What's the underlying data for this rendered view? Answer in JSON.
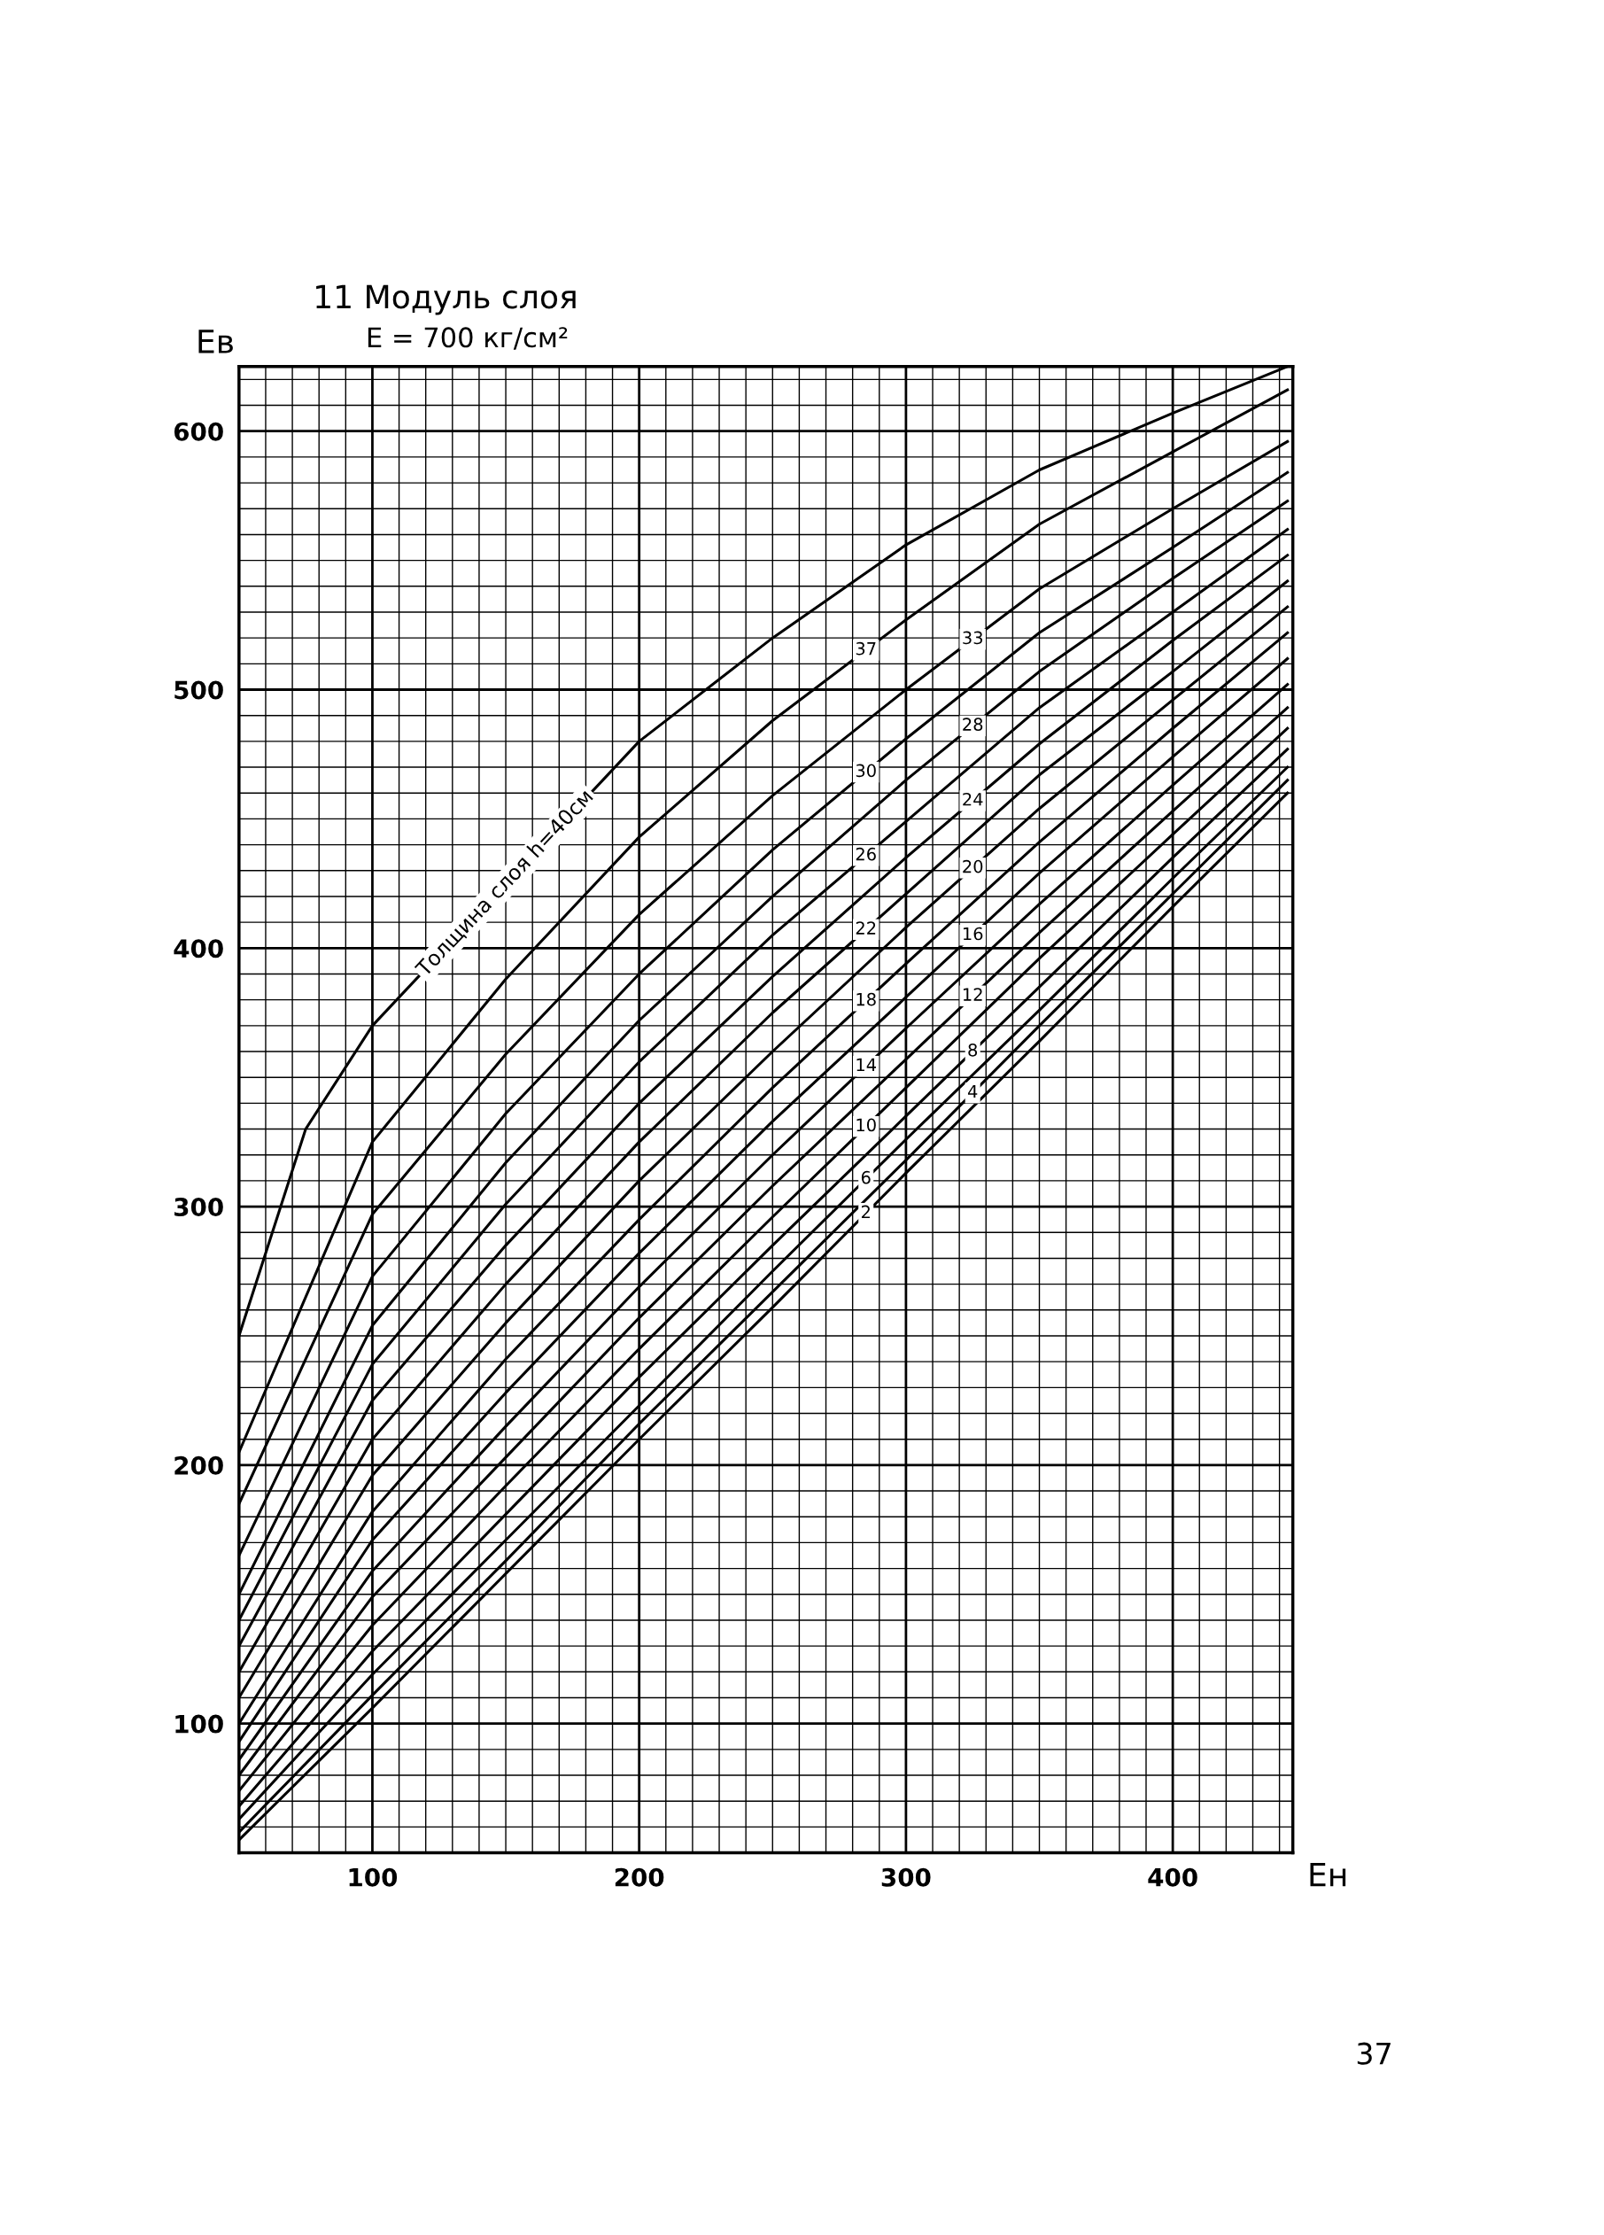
{
  "chart_data": {
    "type": "line",
    "title": "11 Модуль слоя",
    "subtitle": "E = 700 кг/см²",
    "xlabel": "Eн",
    "ylabel": "Eв",
    "annotations": [
      "37"
    ],
    "x": [
      50,
      100,
      150,
      200,
      250,
      300,
      350,
      400,
      443
    ],
    "xlim": [
      50,
      445
    ],
    "ylim": [
      50,
      625
    ],
    "xticks": [
      {
        "value": 60,
        "label": null
      },
      {
        "value": 70,
        "label": null
      },
      {
        "value": 80,
        "label": null
      },
      {
        "value": 90,
        "label": null
      },
      100,
      {
        "value": 110,
        "label": null
      },
      {
        "value": 120,
        "label": null
      },
      {
        "value": 130,
        "label": null
      },
      {
        "value": 140,
        "label": null
      },
      {
        "value": 150,
        "label": null
      },
      {
        "value": 160,
        "label": null
      },
      {
        "value": 170,
        "label": null
      },
      {
        "value": 180,
        "label": null
      },
      {
        "value": 190,
        "label": null
      },
      200,
      {
        "value": 210,
        "label": null
      },
      {
        "value": 220,
        "label": null
      },
      {
        "value": 230,
        "label": null
      },
      {
        "value": 240,
        "label": null
      },
      {
        "value": 250,
        "label": null
      },
      {
        "value": 260,
        "label": null
      },
      {
        "value": 270,
        "label": null
      },
      {
        "value": 280,
        "label": null
      },
      {
        "value": 290,
        "label": null
      },
      300,
      {
        "value": 310,
        "label": null
      },
      {
        "value": 320,
        "label": null
      },
      {
        "value": 330,
        "label": null
      },
      {
        "value": 340,
        "label": null
      },
      {
        "value": 350,
        "label": null
      },
      {
        "value": 360,
        "label": null
      },
      {
        "value": 370,
        "label": null
      },
      {
        "value": 380,
        "label": null
      },
      {
        "value": 390,
        "label": null
      },
      400,
      {
        "value": 410,
        "label": null
      },
      {
        "value": 420,
        "label": null
      },
      {
        "value": 430,
        "label": null
      },
      {
        "value": 440,
        "label": null
      }
    ],
    "yticks": [
      {
        "value": 60,
        "label": null
      },
      {
        "value": 70,
        "label": null
      },
      {
        "value": 80,
        "label": null
      },
      {
        "value": 90,
        "label": null
      },
      100,
      {
        "value": 110,
        "label": null
      },
      {
        "value": 120,
        "label": null
      },
      {
        "value": 130,
        "label": null
      },
      {
        "value": 140,
        "label": null
      },
      {
        "value": 150,
        "label": null
      },
      {
        "value": 160,
        "label": null
      },
      {
        "value": 170,
        "label": null
      },
      {
        "value": 180,
        "label": null
      },
      {
        "value": 190,
        "label": null
      },
      200,
      {
        "value": 210,
        "label": null
      },
      {
        "value": 220,
        "label": null
      },
      {
        "value": 230,
        "label": null
      },
      {
        "value": 240,
        "label": null
      },
      {
        "value": 250,
        "label": null
      },
      {
        "value": 260,
        "label": null
      },
      {
        "value": 270,
        "label": null
      },
      {
        "value": 280,
        "label": null
      },
      {
        "value": 290,
        "label": null
      },
      300,
      {
        "value": 310,
        "label": null
      },
      {
        "value": 320,
        "label": null
      },
      {
        "value": 330,
        "label": null
      },
      {
        "value": 340,
        "label": null
      },
      {
        "value": 350,
        "label": null
      },
      {
        "value": 360,
        "label": null
      },
      {
        "value": 370,
        "label": null
      },
      {
        "value": 380,
        "label": null
      },
      {
        "value": 390,
        "label": null
      },
      400,
      {
        "value": 410,
        "label": null
      },
      {
        "value": 420,
        "label": null
      },
      {
        "value": 430,
        "label": null
      },
      {
        "value": 440,
        "label": null
      },
      {
        "value": 450,
        "label": null
      },
      {
        "value": 460,
        "label": null
      },
      {
        "value": 470,
        "label": null
      },
      {
        "value": 480,
        "label": null
      },
      {
        "value": 490,
        "label": null
      },
      500,
      {
        "value": 510,
        "label": null
      },
      {
        "value": 520,
        "label": null
      },
      {
        "value": 530,
        "label": null
      },
      {
        "value": 540,
        "label": null
      },
      {
        "value": 550,
        "label": null
      },
      {
        "value": 560,
        "label": null
      },
      {
        "value": 570,
        "label": null
      },
      {
        "value": 580,
        "label": null
      },
      {
        "value": 590,
        "label": null
      },
      600,
      {
        "value": 610,
        "label": null
      },
      {
        "value": 620,
        "label": null
      }
    ],
    "grid": true,
    "legend": false,
    "marker": "none",
    "line_style": "solid",
    "series": [
      {
        "name": "Толщина слоя h=40см",
        "color": "#000000",
        "x": [
          50,
          75,
          100,
          200,
          250,
          300,
          350,
          400,
          443
        ],
        "values": [
          250,
          330,
          370,
          480,
          520,
          556,
          585,
          607,
          625
        ]
      },
      {
        "name": "37",
        "color": "#000000",
        "values": [
          205,
          325,
          388,
          443,
          488,
          527,
          564,
          592,
          616
        ]
      },
      {
        "name": "33",
        "color": "#000000",
        "values": [
          185,
          297,
          359,
          413,
          459,
          500,
          539,
          570,
          596
        ]
      },
      {
        "name": "30",
        "color": "#000000",
        "values": [
          165,
          273,
          336,
          390,
          438,
          481,
          522,
          555,
          584
        ]
      },
      {
        "name": "28",
        "color": "#000000",
        "values": [
          150,
          254,
          317,
          372,
          420,
          465,
          507,
          543,
          573
        ]
      },
      {
        "name": "26",
        "color": "#000000",
        "values": [
          140,
          239,
          301,
          356,
          405,
          449,
          493,
          530,
          562
        ]
      },
      {
        "name": "24",
        "color": "#000000",
        "values": [
          130,
          225,
          285,
          340,
          389,
          435,
          479,
          519,
          552
        ]
      },
      {
        "name": "22",
        "color": "#000000",
        "values": [
          120,
          210,
          270,
          325,
          375,
          421,
          467,
          507,
          542
        ]
      },
      {
        "name": "20",
        "color": "#000000",
        "values": [
          110,
          196,
          255,
          310,
          360,
          408,
          454,
          496,
          532
        ]
      },
      {
        "name": "18",
        "color": "#000000",
        "values": [
          100,
          182,
          241,
          295,
          346,
          394,
          441,
          485,
          522
        ]
      },
      {
        "name": "16",
        "color": "#000000",
        "values": [
          93,
          171,
          228,
          282,
          333,
          381,
          429,
          474,
          512
        ]
      },
      {
        "name": "14",
        "color": "#000000",
        "values": [
          86,
          159,
          215,
          269,
          320,
          369,
          417,
          463,
          502
        ]
      },
      {
        "name": "12",
        "color": "#000000",
        "values": [
          80,
          149,
          203,
          257,
          308,
          357,
          406,
          453,
          493
        ]
      },
      {
        "name": "10",
        "color": "#000000",
        "values": [
          74,
          138,
          192,
          245,
          296,
          346,
          396,
          444,
          485
        ]
      },
      {
        "name": "8",
        "color": "#000000",
        "values": [
          68,
          128,
          181,
          234,
          285,
          335,
          385,
          435,
          477
        ]
      },
      {
        "name": "6",
        "color": "#000000",
        "values": [
          63,
          119,
          171,
          223,
          275,
          326,
          376,
          427,
          470
        ]
      },
      {
        "name": "4",
        "color": "#000000",
        "values": [
          58,
          111,
          163,
          216,
          267,
          318,
          370,
          421,
          465
        ]
      },
      {
        "name": "2",
        "color": "#000000",
        "values": [
          55,
          106,
          158,
          210,
          261,
          313,
          364,
          416,
          460
        ]
      }
    ]
  }
}
